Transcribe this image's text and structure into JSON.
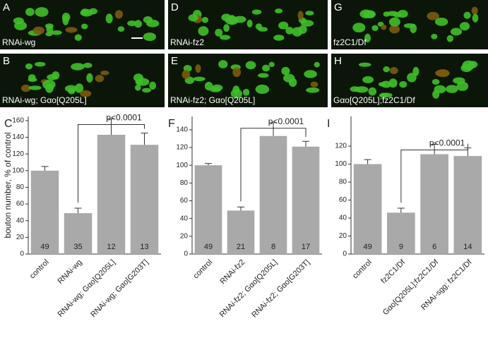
{
  "image_panels": [
    {
      "letter": "A",
      "label": "RNAi-wg"
    },
    {
      "letter": "B",
      "label": "RNAi-wg; Gαo[Q205L]"
    },
    {
      "letter": "D",
      "label": "RNAi-fz2"
    },
    {
      "letter": "E",
      "label": "RNAi-fz2; Gαo[Q205L]"
    },
    {
      "letter": "G",
      "label": "fz2C1/Df"
    },
    {
      "letter": "H",
      "label": "Gαo[Q205L];fz2C1/Df"
    }
  ],
  "chart_data": [
    {
      "type": "bar",
      "panel_label": "C",
      "ylabel": "bouton number, % of control",
      "categories": [
        "control",
        "RNAi-wg",
        "RNAi-wg; Gαo[Q205L]",
        "RNAi-wg; Gαo[G203T]"
      ],
      "values": [
        100,
        49,
        143,
        131
      ],
      "errors": [
        5,
        6,
        19,
        14
      ],
      "counts": [
        49,
        35,
        12,
        13
      ],
      "color": "#a9a9a9",
      "ylim": [
        0,
        165
      ],
      "yticks": [
        0,
        20,
        40,
        60,
        80,
        100,
        120,
        140,
        160
      ],
      "annotation": "p<0.0001"
    },
    {
      "type": "bar",
      "panel_label": "F",
      "categories": [
        "control",
        "RNAi-fz2",
        "RNAi-fz2; Gαo[Q205L]",
        "RNAi-fz2; Gαo[G203T]"
      ],
      "values": [
        100,
        49,
        133,
        121
      ],
      "errors": [
        2,
        4,
        15,
        6
      ],
      "counts": [
        49,
        21,
        8,
        17
      ],
      "color": "#a9a9a9",
      "ylim": [
        0,
        155
      ],
      "yticks": [
        0,
        20,
        40,
        60,
        80,
        100,
        120,
        140
      ],
      "annotation": "p<0.0001"
    },
    {
      "type": "bar",
      "panel_label": "I",
      "categories": [
        "control",
        "fz2C1/Df",
        "Gαo[Q205L];fz2C1/Df",
        "RNAi-sgg; fz2C1/Df"
      ],
      "values": [
        100,
        46,
        111,
        109
      ],
      "errors": [
        5,
        5,
        11,
        9
      ],
      "counts": [
        49,
        9,
        6,
        14
      ],
      "color": "#a9a9a9",
      "ylim": [
        0,
        153
      ],
      "yticks": [
        0,
        20,
        40,
        60,
        80,
        100,
        120
      ],
      "annotation": "p<0.0001"
    }
  ]
}
